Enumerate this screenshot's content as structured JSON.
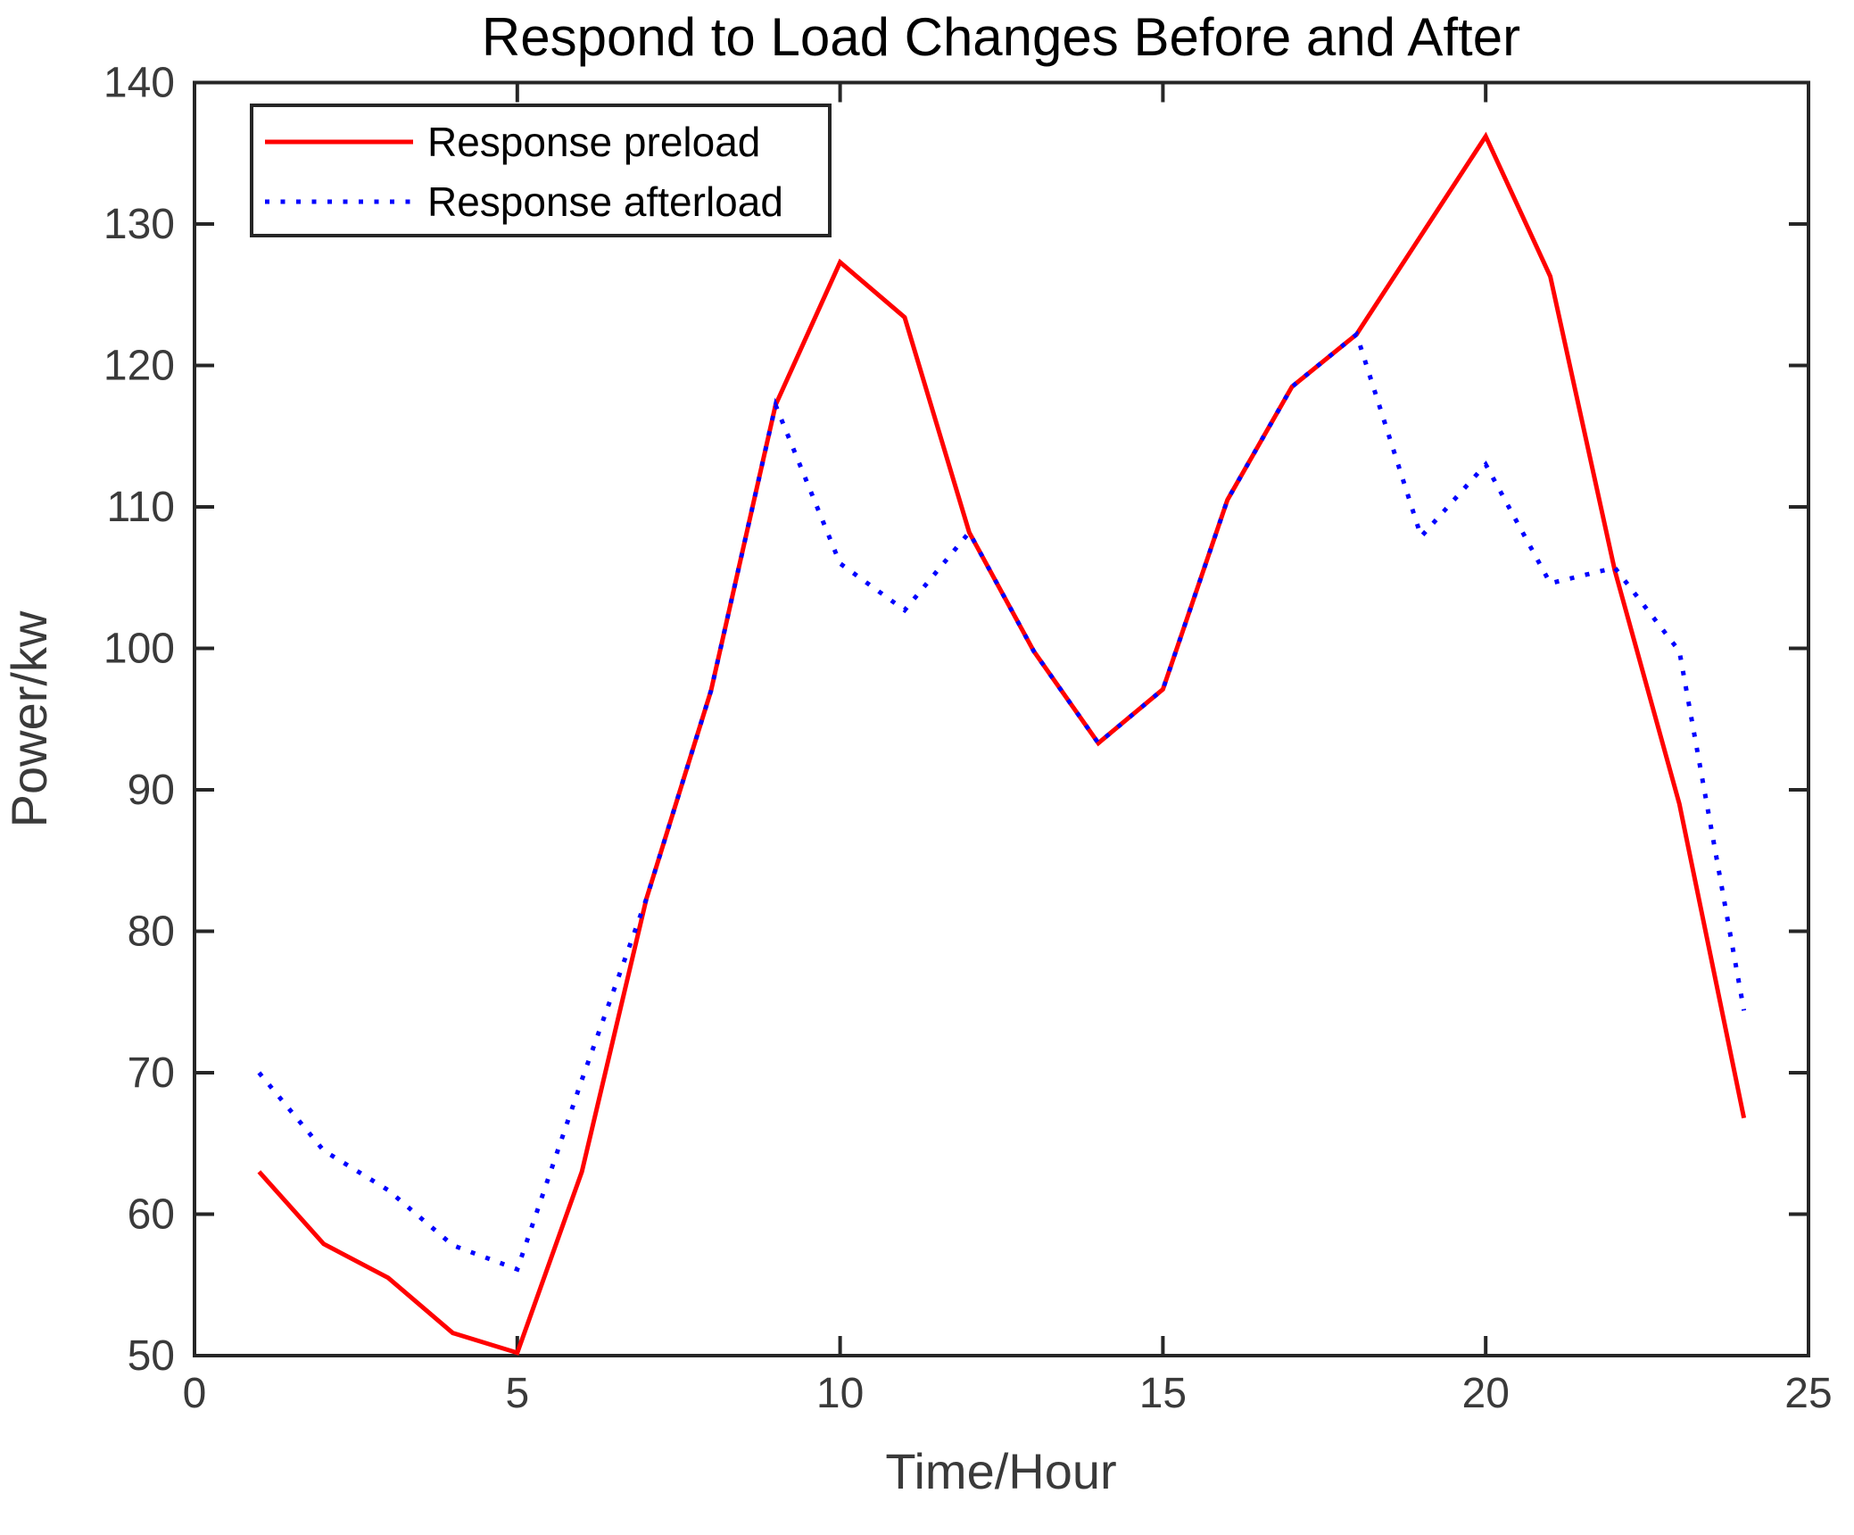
{
  "chart_data": {
    "type": "line",
    "title": "Respond to Load Changes Before and After",
    "xlabel": "Time/Hour",
    "ylabel": "Power/kw",
    "xlim": [
      0,
      25
    ],
    "ylim": [
      50,
      140
    ],
    "x_ticks": [
      0,
      5,
      10,
      15,
      20,
      25
    ],
    "y_ticks": [
      50,
      60,
      70,
      80,
      90,
      100,
      110,
      120,
      130,
      140
    ],
    "grid": false,
    "legend_position": "top-left",
    "frame_color": "#262626",
    "x": [
      1,
      2,
      3,
      4,
      5,
      6,
      7,
      8,
      9,
      10,
      11,
      12,
      13,
      14,
      15,
      16,
      17,
      18,
      19,
      20,
      21,
      22,
      23,
      24
    ],
    "series": [
      {
        "name": "Response preload",
        "color": "#ff0000",
        "style": "solid",
        "values": [
          63.0,
          57.9,
          55.5,
          51.6,
          50.2,
          63.0,
          82.3,
          97.0,
          117.2,
          127.3,
          123.4,
          108.2,
          99.8,
          93.3,
          97.1,
          110.5,
          118.5,
          122.2,
          129.2,
          136.2,
          126.3,
          105.5,
          89.0,
          66.8
        ]
      },
      {
        "name": "Response afterload",
        "color": "#0000ff",
        "style": "dotted",
        "values": [
          70.0,
          64.5,
          61.7,
          57.8,
          56.1,
          69.5,
          82.3,
          97.0,
          117.2,
          106.0,
          102.7,
          108.2,
          99.8,
          93.3,
          97.1,
          110.5,
          118.5,
          122.2,
          107.9,
          113.0,
          104.6,
          105.7,
          99.8,
          74.4
        ]
      }
    ]
  }
}
